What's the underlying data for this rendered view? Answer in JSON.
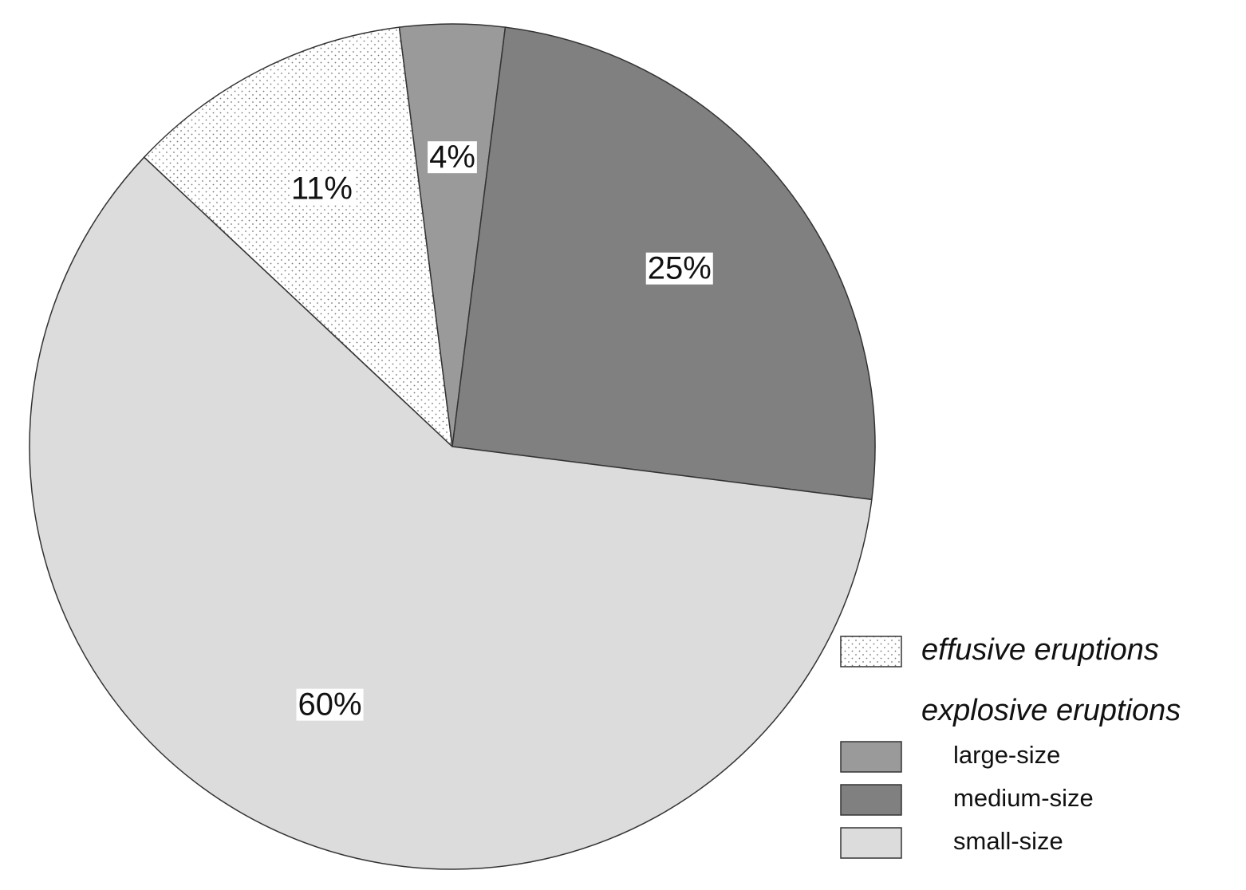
{
  "chart_data": {
    "type": "pie",
    "categories": [
      "effusive eruptions",
      "large-size",
      "medium-size",
      "small-size"
    ],
    "values": [
      11,
      4,
      25,
      60
    ],
    "value_labels": [
      "11%",
      "4%",
      "25%",
      "60%"
    ],
    "colors": [
      "#ffffff",
      "#9a9a9a",
      "#808080",
      "#dcdcdc"
    ],
    "patterns": [
      "dots",
      "solid",
      "solid",
      "solid"
    ],
    "legend_subheading": "explosive eruptions",
    "legend": "lower right"
  }
}
